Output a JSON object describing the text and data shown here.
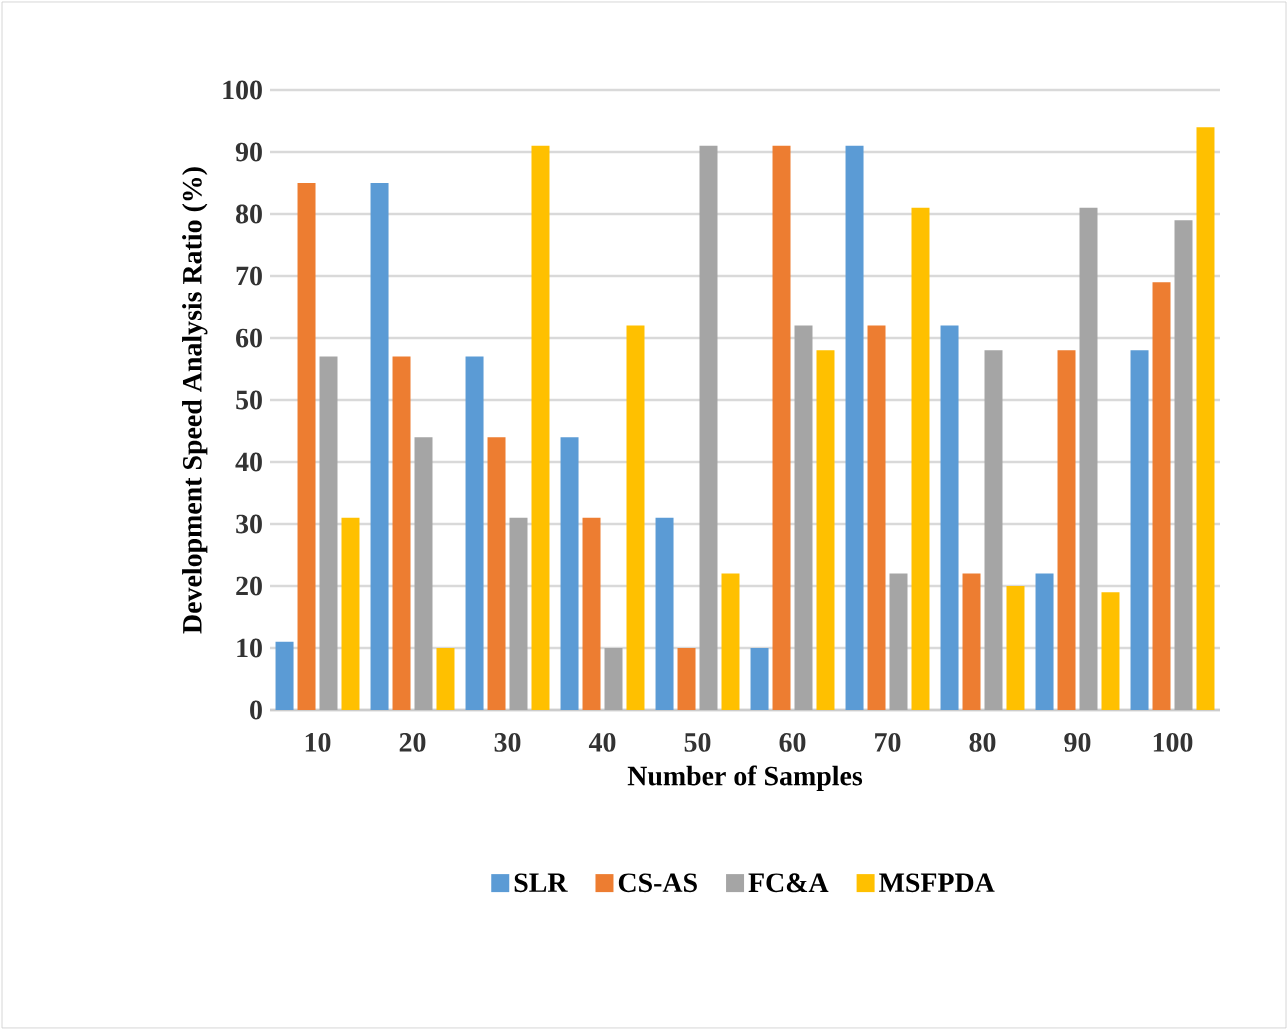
{
  "chart_data": {
    "type": "bar",
    "xlabel": "Number of Samples",
    "ylabel": "Development Speed Analysis Ratio (%)",
    "categories": [
      "10",
      "20",
      "30",
      "40",
      "50",
      "60",
      "70",
      "80",
      "90",
      "100"
    ],
    "series": [
      {
        "name": "SLR",
        "color": "#5b9bd5",
        "values": [
          11,
          85,
          57,
          44,
          31,
          10,
          91,
          62,
          22,
          58
        ]
      },
      {
        "name": "CS-AS",
        "color": "#ed7d31",
        "values": [
          85,
          57,
          44,
          31,
          10,
          91,
          62,
          22,
          58,
          69
        ]
      },
      {
        "name": "FC&A",
        "color": "#a5a5a5",
        "values": [
          57,
          44,
          31,
          10,
          91,
          62,
          22,
          58,
          81,
          79
        ]
      },
      {
        "name": "MSFPDA",
        "color": "#ffc000",
        "values": [
          31,
          10,
          91,
          62,
          22,
          58,
          81,
          20,
          19,
          94
        ]
      }
    ],
    "ylim": [
      0,
      100
    ],
    "yticks": [
      0,
      10,
      20,
      30,
      40,
      50,
      60,
      70,
      80,
      90,
      100
    ],
    "grid": "y",
    "legend": "bottom"
  }
}
